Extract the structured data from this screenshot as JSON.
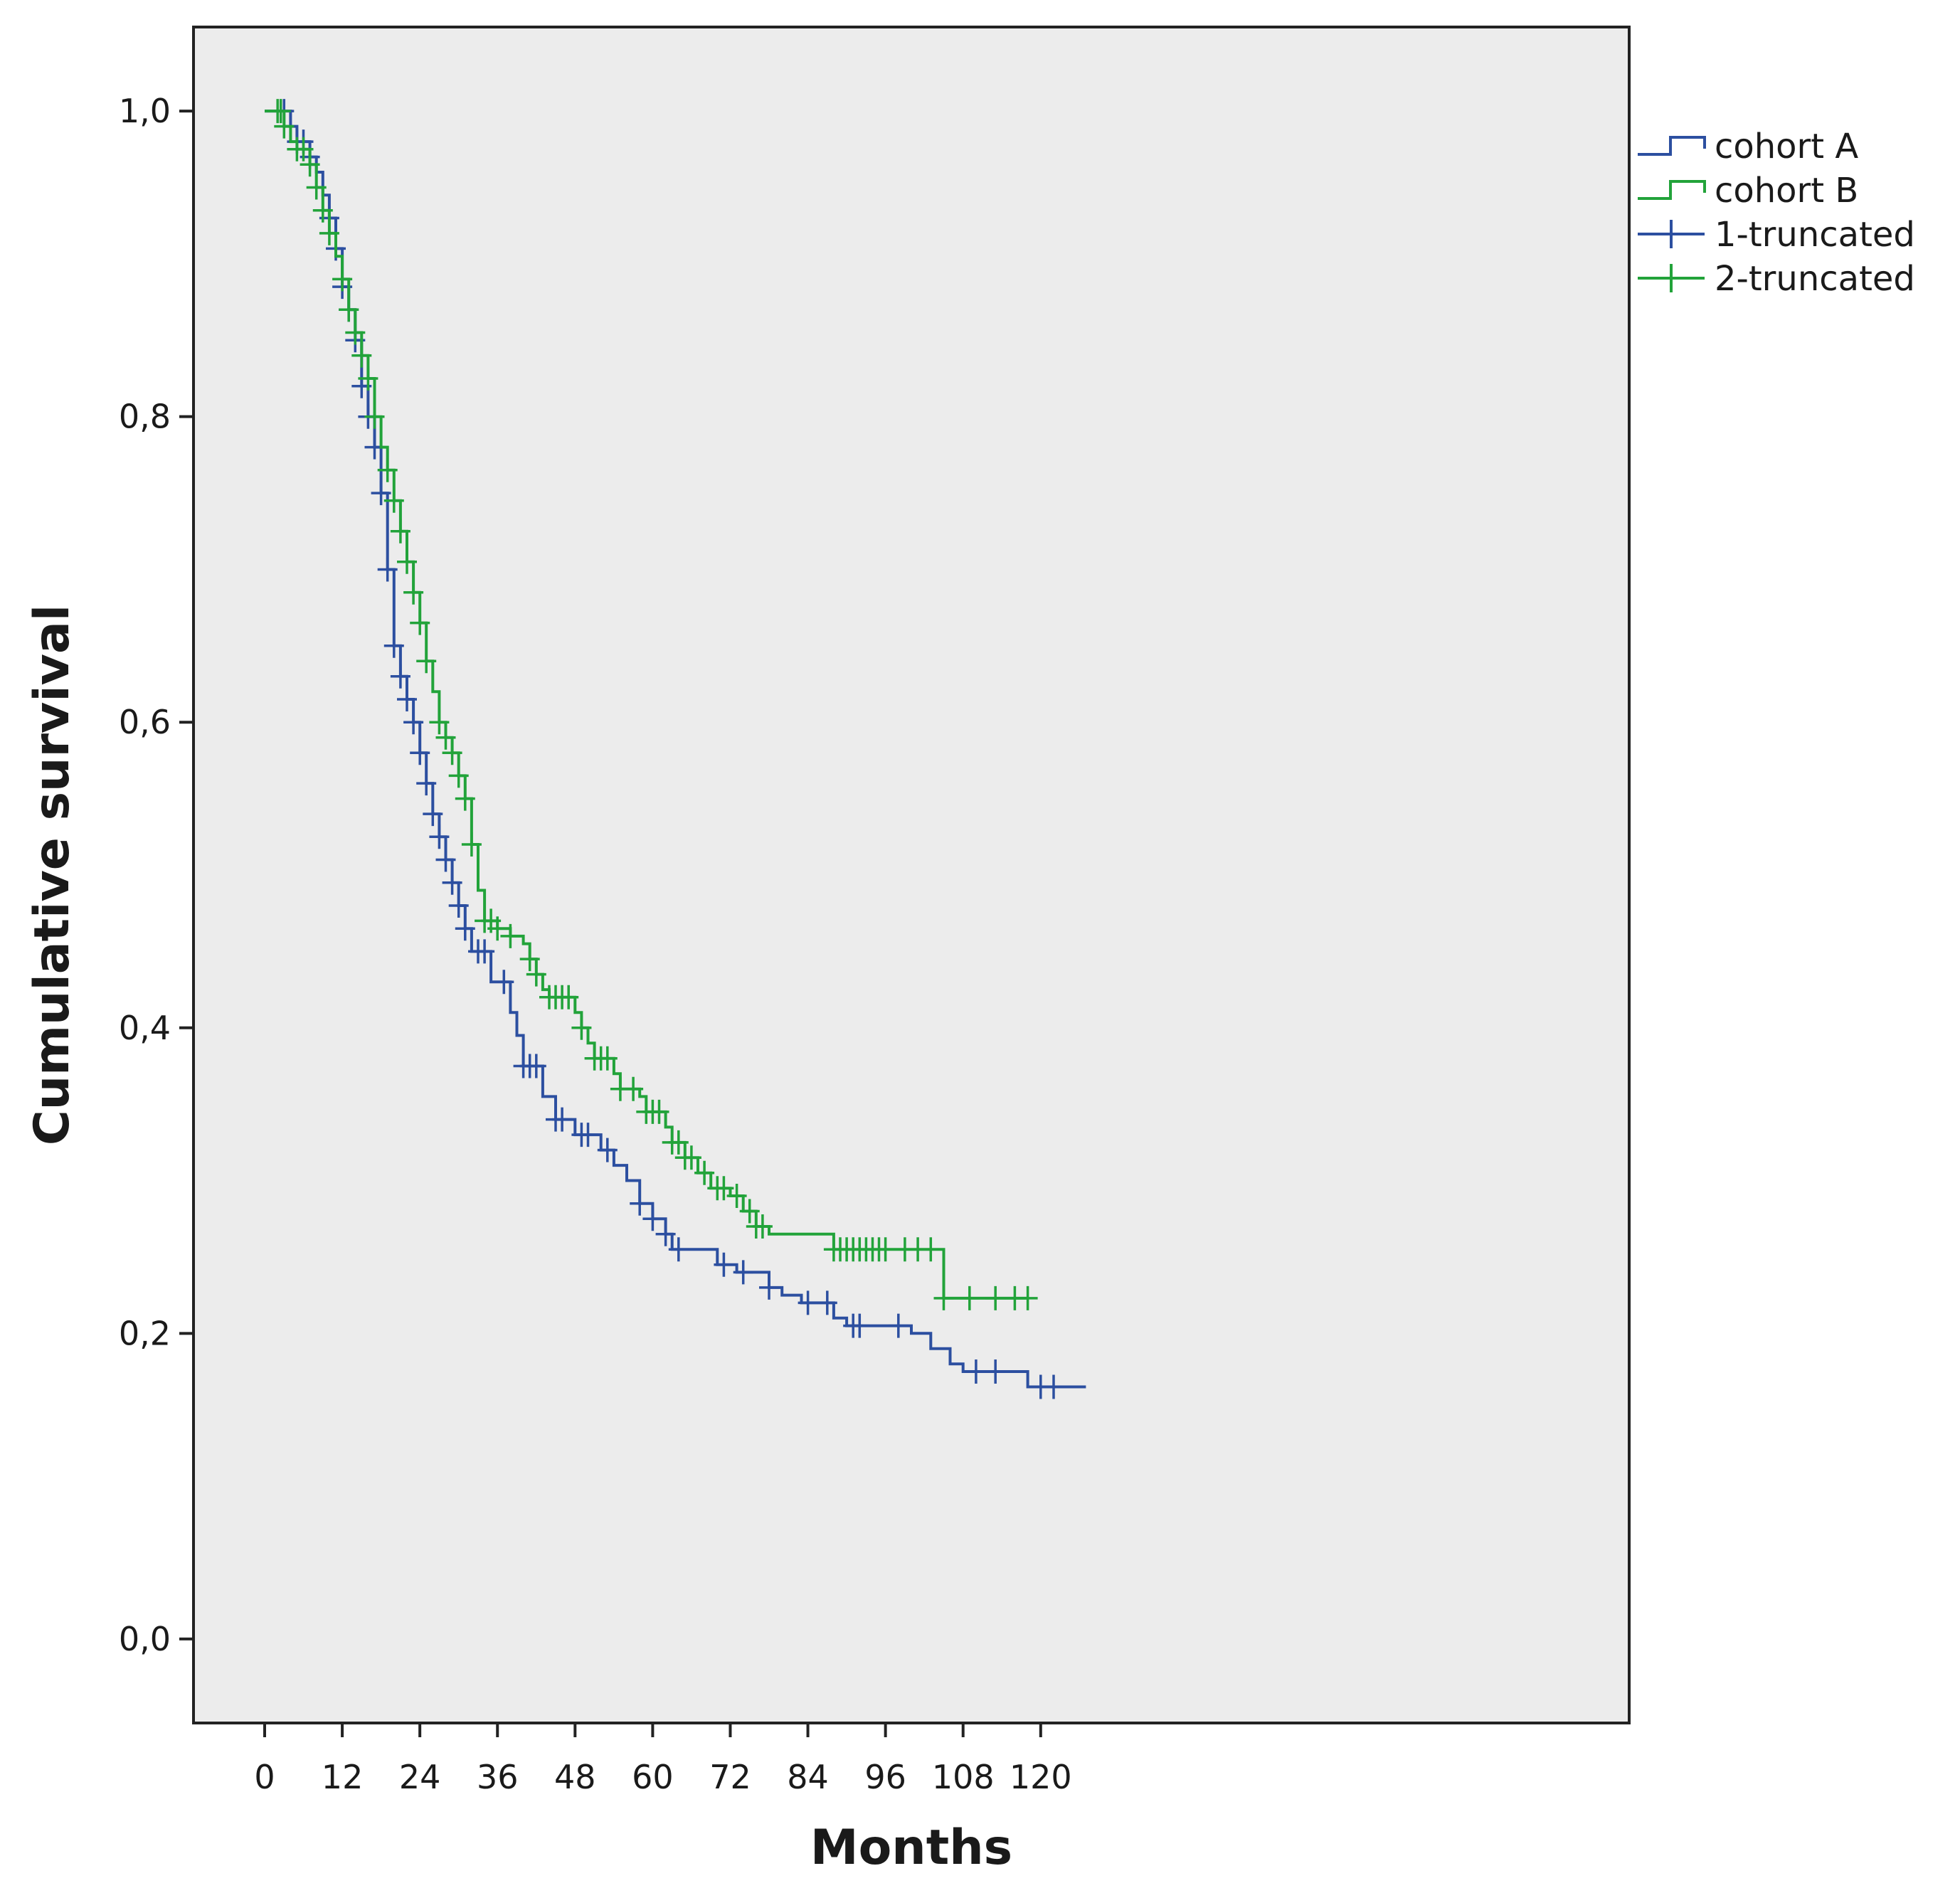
{
  "chart_data": {
    "type": "line",
    "subtype": "kaplan-meier step",
    "title": "",
    "xlabel": "Months",
    "ylabel": "Cumulative survival",
    "xlim": [
      -11,
      211
    ],
    "ylim": [
      -0.055,
      1.055
    ],
    "xticks": [
      0,
      12,
      24,
      36,
      48,
      60,
      72,
      84,
      96,
      108,
      120
    ],
    "xtick_labels": [
      "0",
      "12",
      "24",
      "36",
      "48",
      "60",
      "72",
      "84",
      "96",
      "108",
      "120"
    ],
    "yticks": [
      0.0,
      0.2,
      0.4,
      0.6,
      0.8,
      1.0
    ],
    "ytick_labels": [
      "0,0",
      "0,2",
      "0,4",
      "0,6",
      "0,8",
      "1,0"
    ],
    "grid": false,
    "legend_position": "right-top, outside plot",
    "legend": [
      {
        "label": "cohort A",
        "kind": "step",
        "color": "#2c4fa0"
      },
      {
        "label": "cohort B",
        "kind": "step",
        "color": "#22a33a"
      },
      {
        "label": "1-truncated",
        "kind": "censor",
        "color": "#2c4fa0"
      },
      {
        "label": "2-truncated",
        "kind": "censor",
        "color": "#22a33a"
      }
    ],
    "series": [
      {
        "name": "cohort A",
        "color": "#2c4fa0",
        "steps": [
          [
            0,
            1.0
          ],
          [
            4,
            0.99
          ],
          [
            5,
            0.98
          ],
          [
            7,
            0.97
          ],
          [
            8,
            0.96
          ],
          [
            9,
            0.945
          ],
          [
            10,
            0.93
          ],
          [
            11,
            0.91
          ],
          [
            12,
            0.885
          ],
          [
            13,
            0.87
          ],
          [
            14,
            0.85
          ],
          [
            15,
            0.82
          ],
          [
            16,
            0.8
          ],
          [
            17,
            0.78
          ],
          [
            18,
            0.75
          ],
          [
            19,
            0.7
          ],
          [
            20,
            0.65
          ],
          [
            21,
            0.63
          ],
          [
            22,
            0.615
          ],
          [
            23,
            0.6
          ],
          [
            24,
            0.58
          ],
          [
            25,
            0.56
          ],
          [
            26,
            0.54
          ],
          [
            27,
            0.525
          ],
          [
            28,
            0.51
          ],
          [
            29,
            0.495
          ],
          [
            30,
            0.48
          ],
          [
            31,
            0.465
          ],
          [
            32,
            0.45
          ],
          [
            35,
            0.43
          ],
          [
            38,
            0.41
          ],
          [
            39,
            0.395
          ],
          [
            40,
            0.375
          ],
          [
            43,
            0.355
          ],
          [
            45,
            0.34
          ],
          [
            48,
            0.33
          ],
          [
            52,
            0.32
          ],
          [
            54,
            0.31
          ],
          [
            56,
            0.3
          ],
          [
            58,
            0.285
          ],
          [
            60,
            0.275
          ],
          [
            62,
            0.265
          ],
          [
            63,
            0.255
          ],
          [
            70,
            0.245
          ],
          [
            73,
            0.24
          ],
          [
            78,
            0.23
          ],
          [
            80,
            0.225
          ],
          [
            83,
            0.22
          ],
          [
            88,
            0.21
          ],
          [
            90,
            0.205
          ],
          [
            100,
            0.2
          ],
          [
            103,
            0.19
          ],
          [
            106,
            0.18
          ],
          [
            108,
            0.175
          ],
          [
            118,
            0.165
          ],
          [
            127,
            0.165
          ]
        ],
        "censored": [
          3,
          5,
          6,
          7,
          10,
          11,
          12,
          13,
          14,
          15,
          16,
          17,
          18,
          19,
          20,
          21,
          22,
          23,
          24,
          25,
          26,
          27,
          28,
          29,
          30,
          31,
          33,
          34,
          37,
          40,
          41,
          42,
          45,
          46,
          49,
          50,
          53,
          58,
          60,
          62,
          64,
          71,
          74,
          78,
          84,
          87,
          91,
          92,
          98,
          110,
          113,
          120,
          122
        ]
      },
      {
        "name": "cohort B",
        "color": "#22a33a",
        "steps": [
          [
            0,
            1.0
          ],
          [
            3,
            0.99
          ],
          [
            4,
            0.98
          ],
          [
            5,
            0.975
          ],
          [
            7,
            0.965
          ],
          [
            8,
            0.95
          ],
          [
            9,
            0.935
          ],
          [
            10,
            0.92
          ],
          [
            11,
            0.905
          ],
          [
            12,
            0.89
          ],
          [
            13,
            0.87
          ],
          [
            14,
            0.855
          ],
          [
            15,
            0.84
          ],
          [
            16,
            0.825
          ],
          [
            17,
            0.8
          ],
          [
            18,
            0.78
          ],
          [
            19,
            0.765
          ],
          [
            20,
            0.745
          ],
          [
            21,
            0.725
          ],
          [
            22,
            0.705
          ],
          [
            23,
            0.685
          ],
          [
            24,
            0.665
          ],
          [
            25,
            0.64
          ],
          [
            26,
            0.62
          ],
          [
            27,
            0.6
          ],
          [
            28,
            0.59
          ],
          [
            29,
            0.58
          ],
          [
            30,
            0.565
          ],
          [
            31,
            0.55
          ],
          [
            32,
            0.52
          ],
          [
            33,
            0.49
          ],
          [
            34,
            0.47
          ],
          [
            36,
            0.465
          ],
          [
            38,
            0.46
          ],
          [
            40,
            0.455
          ],
          [
            41,
            0.445
          ],
          [
            42,
            0.435
          ],
          [
            43,
            0.425
          ],
          [
            44,
            0.42
          ],
          [
            48,
            0.41
          ],
          [
            49,
            0.4
          ],
          [
            50,
            0.39
          ],
          [
            51,
            0.38
          ],
          [
            54,
            0.37
          ],
          [
            55,
            0.36
          ],
          [
            58,
            0.355
          ],
          [
            59,
            0.345
          ],
          [
            62,
            0.335
          ],
          [
            63,
            0.325
          ],
          [
            65,
            0.315
          ],
          [
            67,
            0.305
          ],
          [
            69,
            0.295
          ],
          [
            72,
            0.29
          ],
          [
            74,
            0.28
          ],
          [
            76,
            0.27
          ],
          [
            78,
            0.265
          ],
          [
            88,
            0.255
          ],
          [
            105,
            0.255
          ],
          [
            105,
            0.223
          ],
          [
            118,
            0.223
          ]
        ],
        "censored": [
          2,
          2.5,
          3,
          5,
          6,
          7,
          8,
          9,
          10,
          12,
          13,
          14,
          15,
          16,
          17,
          19,
          20,
          21,
          22,
          23,
          24,
          25,
          27,
          28,
          29,
          30,
          31,
          32,
          34,
          35,
          36,
          38,
          41,
          42,
          44,
          45,
          46,
          47,
          49,
          51,
          52,
          53,
          55,
          57,
          59,
          60,
          61,
          63,
          64,
          65,
          66,
          68,
          70,
          71,
          73,
          75,
          76,
          77,
          88,
          89,
          90,
          91,
          92,
          93,
          94,
          95,
          96,
          99,
          101,
          103,
          105,
          109,
          113,
          116,
          118
        ]
      }
    ]
  }
}
